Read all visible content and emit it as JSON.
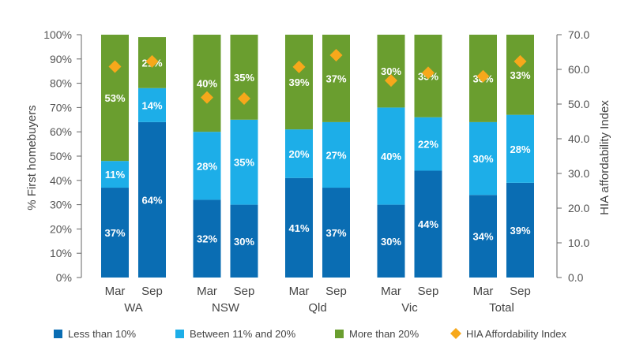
{
  "chart_data": {
    "type": "bar",
    "stacked": true,
    "ylabel": "% First homebuyers",
    "y2label": "HIA affordability Index",
    "ylim": [
      0,
      100
    ],
    "y2lim": [
      0,
      70
    ],
    "yticks": [
      "0%",
      "10%",
      "20%",
      "30%",
      "40%",
      "50%",
      "60%",
      "70%",
      "80%",
      "90%",
      "100%"
    ],
    "y2ticks": [
      "0.0",
      "10.0",
      "20.0",
      "30.0",
      "40.0",
      "50.0",
      "60.0",
      "70.0"
    ],
    "groups": [
      {
        "name": "WA",
        "bars": [
          {
            "label": "Mar",
            "values": [
              37,
              11,
              53
            ],
            "index": 60.8
          },
          {
            "label": "Sep",
            "values": [
              64,
              14,
              21
            ],
            "index": 62.3
          }
        ]
      },
      {
        "name": "NSW",
        "bars": [
          {
            "label": "Mar",
            "values": [
              32,
              28,
              40
            ],
            "index": 51.9
          },
          {
            "label": "Sep",
            "values": [
              30,
              35,
              35
            ],
            "index": 51.6
          }
        ]
      },
      {
        "name": "Qld",
        "bars": [
          {
            "label": "Mar",
            "values": [
              41,
              20,
              39
            ],
            "index": 60.7
          },
          {
            "label": "Sep",
            "values": [
              37,
              27,
              37
            ],
            "index": 64.1
          }
        ]
      },
      {
        "name": "Vic",
        "bars": [
          {
            "label": "Mar",
            "values": [
              30,
              40,
              30
            ],
            "index": 56.8
          },
          {
            "label": "Sep",
            "values": [
              44,
              22,
              35
            ],
            "index": 59.0
          }
        ]
      },
      {
        "name": "Total",
        "bars": [
          {
            "label": "Mar",
            "values": [
              34,
              30,
              36
            ],
            "index": 58.0
          },
          {
            "label": "Sep",
            "values": [
              39,
              28,
              33
            ],
            "index": 62.3
          }
        ]
      }
    ],
    "series": [
      {
        "name": "Less than 10%",
        "color": "#0a6db3"
      },
      {
        "name": "Between 11% and 20%",
        "color": "#1daee8"
      },
      {
        "name": "More than 20%",
        "color": "#6a9e2f"
      },
      {
        "name": "HIA Affordability Index",
        "color": "#f7a81b",
        "marker": "diamond",
        "axis": "right"
      }
    ],
    "legend_position": "bottom",
    "grid": false
  }
}
